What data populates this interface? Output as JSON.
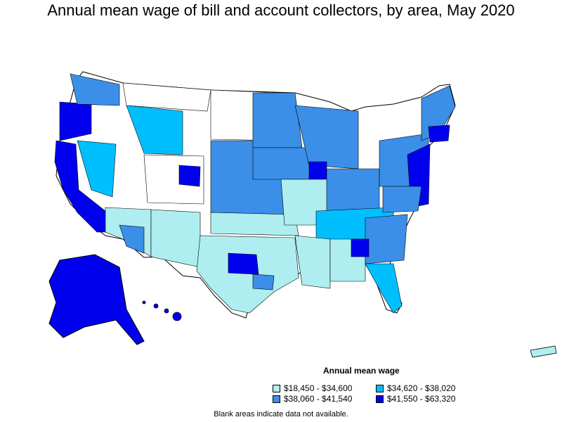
{
  "title": "Annual mean wage of bill and account collectors, by area, May 2020",
  "legend": {
    "title": "Annual mean wage",
    "items": [
      {
        "label": "$18,450 - $34,600",
        "color": "#aeeef0"
      },
      {
        "label": "$34,620 - $38,020",
        "color": "#00bfff"
      },
      {
        "label": "$38,060 - $41,540",
        "color": "#3b8fe8"
      },
      {
        "label": "$41,550 - $63,320",
        "color": "#0000ee"
      }
    ]
  },
  "footnote": "Blank areas indicate data not available.",
  "colors": {
    "no_data": "#ffffff",
    "border": "#000000"
  }
}
